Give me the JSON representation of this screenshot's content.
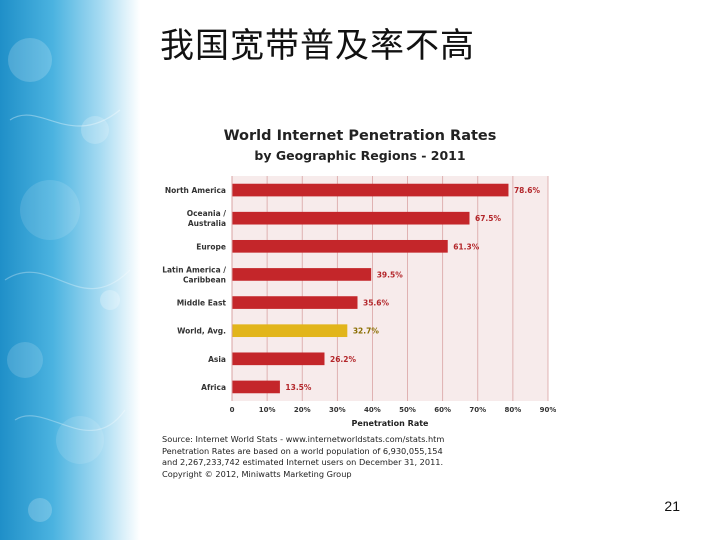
{
  "slide": {
    "title": "我国宽带普及率不高",
    "page_number": "21"
  },
  "colors": {
    "bar": "#c4262a",
    "bar_highlight": "#e2b51b",
    "plot_background": "#f7ebeb",
    "grid": "#d9a3a3",
    "left_band": "#3aa8dc"
  },
  "chart_data": {
    "type": "bar",
    "orientation": "horizontal",
    "title": "World Internet Penetration Rates",
    "subtitle": "by Geographic Regions - 2011",
    "categories": [
      "North America",
      "Oceania / Australia",
      "Europe",
      "Latin America / Caribbean",
      "Middle East",
      "World, Avg.",
      "Asia",
      "Africa"
    ],
    "category_lines": [
      [
        "North America"
      ],
      [
        "Oceania /",
        "Australia"
      ],
      [
        "Europe"
      ],
      [
        "Latin America /",
        "Caribbean"
      ],
      [
        "Middle East"
      ],
      [
        "World, Avg."
      ],
      [
        "Asia"
      ],
      [
        "Africa"
      ]
    ],
    "values": [
      78.6,
      67.5,
      61.3,
      39.5,
      35.6,
      32.7,
      26.2,
      13.5
    ],
    "value_labels": [
      "78.6%",
      "67.5%",
      "61.3%",
      "39.5%",
      "35.6%",
      "32.7%",
      "26.2%",
      "13.5%"
    ],
    "highlight": [
      "World, Avg."
    ],
    "xlabel": "Penetration Rate",
    "ylabel": "",
    "xlim": [
      0,
      90
    ],
    "xticks": [
      0,
      10,
      20,
      30,
      40,
      50,
      60,
      70,
      80,
      90
    ],
    "xtick_labels": [
      "0",
      "10%",
      "20%",
      "30%",
      "40%",
      "50%",
      "60%",
      "70%",
      "80%",
      "90%"
    ],
    "grid": true,
    "legend": "none",
    "source_lines": [
      "Source: Internet World Stats - www.internetworldstats.com/stats.htm",
      "Penetration Rates are based on a world population of 6,930,055,154",
      "and 2,267,233,742 estimated Internet users on December 31, 2011.",
      "Copyright © 2012, Miniwatts Marketing Group"
    ]
  }
}
